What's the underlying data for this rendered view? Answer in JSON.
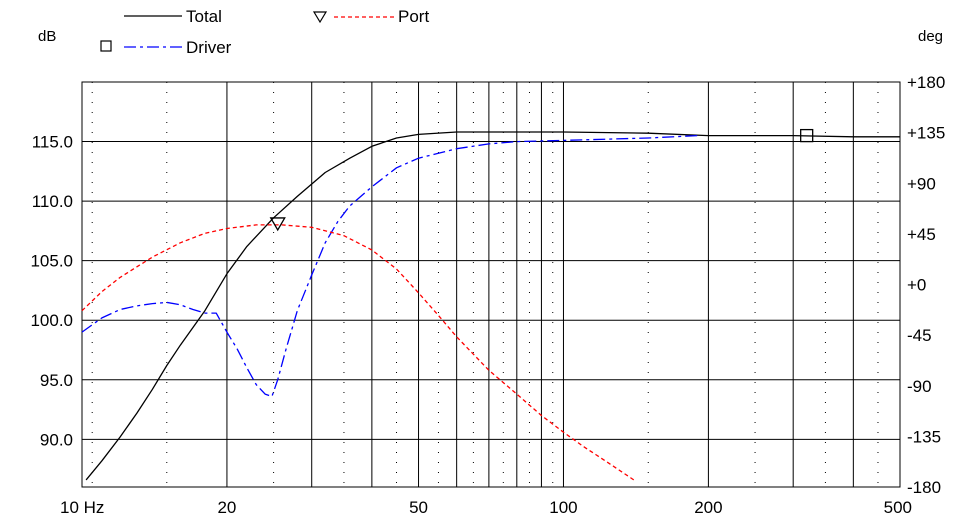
{
  "chart_data": {
    "type": "line",
    "left_axis": {
      "unit": "dB",
      "range": [
        86.0,
        120.0
      ],
      "ticks": [
        {
          "value": 90,
          "label": "90.0"
        },
        {
          "value": 95,
          "label": "95.0"
        },
        {
          "value": 100,
          "label": "100.0"
        },
        {
          "value": 105,
          "label": "105.0"
        },
        {
          "value": 110,
          "label": "110.0"
        },
        {
          "value": 115,
          "label": "115.0"
        }
      ]
    },
    "right_axis": {
      "unit": "deg",
      "range": [
        -180,
        180
      ],
      "ticks": [
        {
          "value": 180,
          "label": "+180"
        },
        {
          "value": 135,
          "label": "+135"
        },
        {
          "value": 90,
          "label": "+90"
        },
        {
          "value": 45,
          "label": "+45"
        },
        {
          "value": 0,
          "label": "+0"
        },
        {
          "value": -45,
          "label": "-45"
        },
        {
          "value": -90,
          "label": "-90"
        },
        {
          "value": -135,
          "label": "-135"
        },
        {
          "value": -180,
          "label": "-180"
        }
      ]
    },
    "x_axis": {
      "scale": "log",
      "range": [
        10,
        500
      ],
      "ticks": [
        {
          "value": 10,
          "label": "10 Hz"
        },
        {
          "value": 20,
          "label": "20"
        },
        {
          "value": 50,
          "label": "50"
        },
        {
          "value": 100,
          "label": "100"
        },
        {
          "value": 200,
          "label": "200"
        },
        {
          "value": 500,
          "label": "500"
        }
      ],
      "major_gridlines": [
        10,
        20,
        30,
        40,
        50,
        60,
        70,
        80,
        90,
        100,
        200,
        300,
        400,
        500
      ]
    },
    "grid": true,
    "legend_placement": "top",
    "series": [
      {
        "name": "Total",
        "color": "#000000",
        "dash": "solid",
        "marker": "",
        "axis": "left",
        "points": [
          [
            10.2,
            86.6
          ],
          [
            11,
            88.2
          ],
          [
            12,
            90.2
          ],
          [
            13,
            92.2
          ],
          [
            14,
            94.2
          ],
          [
            15,
            96.2
          ],
          [
            16,
            97.9
          ],
          [
            18,
            100.8
          ],
          [
            20,
            103.9
          ],
          [
            22,
            106.2
          ],
          [
            25,
            108.6
          ],
          [
            28,
            110.4
          ],
          [
            32,
            112.4
          ],
          [
            36,
            113.6
          ],
          [
            40,
            114.6
          ],
          [
            45,
            115.3
          ],
          [
            50,
            115.6
          ],
          [
            60,
            115.8
          ],
          [
            80,
            115.8
          ],
          [
            100,
            115.8
          ],
          [
            150,
            115.7
          ],
          [
            200,
            115.5
          ],
          [
            300,
            115.5
          ],
          [
            400,
            115.4
          ],
          [
            500,
            115.4
          ]
        ]
      },
      {
        "name": "Driver",
        "color": "#0000ff",
        "dash": "dashdot",
        "marker": "square",
        "axis": "left",
        "points": [
          [
            10,
            99.0
          ],
          [
            11,
            100.2
          ],
          [
            12,
            100.9
          ],
          [
            13,
            101.2
          ],
          [
            14,
            101.4
          ],
          [
            15,
            101.5
          ],
          [
            16,
            101.3
          ],
          [
            17,
            100.9
          ],
          [
            18,
            100.6
          ],
          [
            19,
            100.6
          ],
          [
            20,
            99.0
          ],
          [
            21,
            97.6
          ],
          [
            22,
            96.0
          ],
          [
            23,
            94.6
          ],
          [
            24,
            93.8
          ],
          [
            24.8,
            93.6
          ],
          [
            25.5,
            95.0
          ],
          [
            26.5,
            97.5
          ],
          [
            28,
            100.8
          ],
          [
            30,
            103.8
          ],
          [
            32,
            106.5
          ],
          [
            34,
            108.3
          ],
          [
            36,
            109.6
          ],
          [
            40,
            111.2
          ],
          [
            45,
            112.8
          ],
          [
            50,
            113.6
          ],
          [
            60,
            114.4
          ],
          [
            70,
            114.8
          ],
          [
            80,
            115.0
          ],
          [
            100,
            115.1
          ],
          [
            150,
            115.3
          ],
          [
            190,
            115.5
          ]
        ]
      },
      {
        "name": "Port",
        "color": "#ff0000",
        "dash": "dashed",
        "marker": "triangle-down",
        "axis": "left",
        "points": [
          [
            10,
            100.8
          ],
          [
            11,
            102.4
          ],
          [
            12,
            103.6
          ],
          [
            14,
            105.3
          ],
          [
            16,
            106.5
          ],
          [
            18,
            107.3
          ],
          [
            20,
            107.7
          ],
          [
            23,
            108.0
          ],
          [
            26,
            108.0
          ],
          [
            30,
            107.8
          ],
          [
            35,
            107.1
          ],
          [
            40,
            105.9
          ],
          [
            45,
            104.3
          ],
          [
            50,
            102.3
          ],
          [
            55,
            100.4
          ],
          [
            60,
            98.6
          ],
          [
            70,
            95.8
          ],
          [
            80,
            93.8
          ],
          [
            90,
            92.0
          ],
          [
            100,
            90.6
          ],
          [
            110,
            89.4
          ],
          [
            120,
            88.4
          ],
          [
            140,
            86.6
          ]
        ]
      }
    ],
    "markers": [
      {
        "series": "Port",
        "shape": "triangle-down",
        "x": 25.5,
        "y": 108.0
      },
      {
        "series": "Driver",
        "shape": "square",
        "x": 320,
        "y": 115.5
      }
    ]
  }
}
